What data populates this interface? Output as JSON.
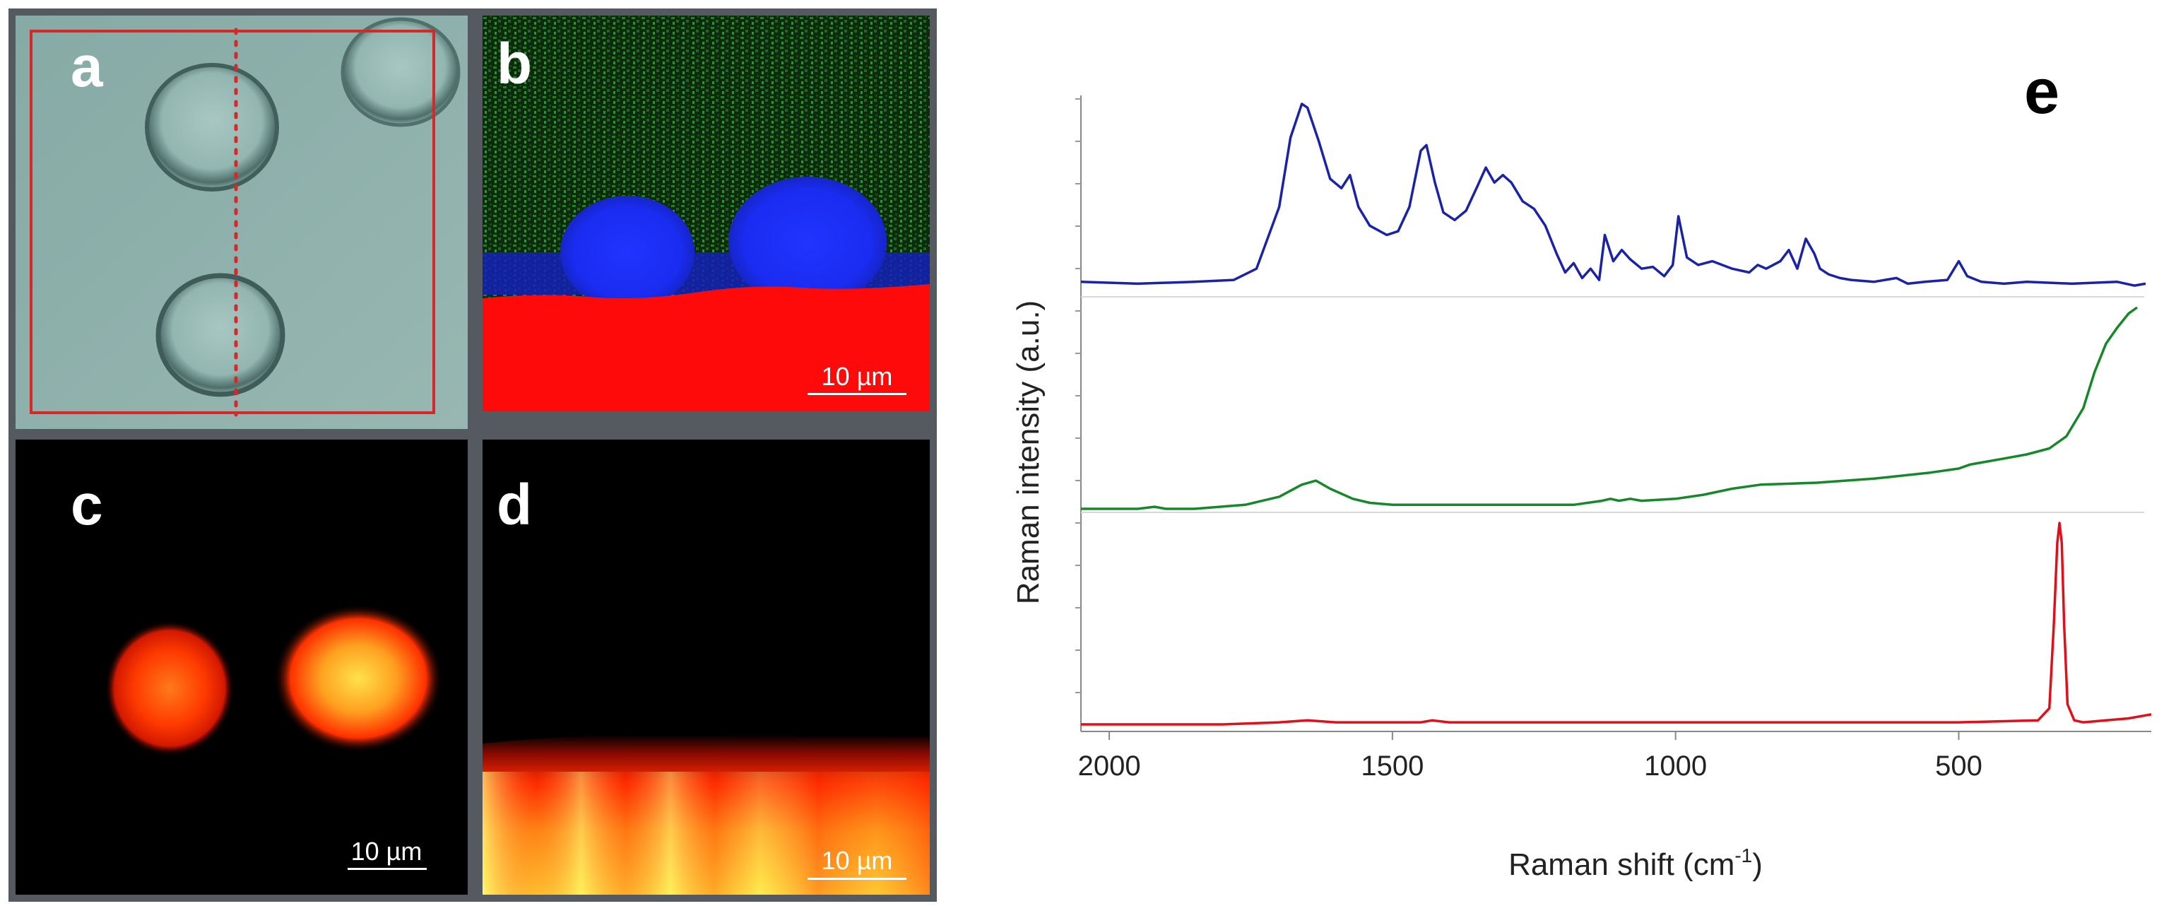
{
  "figure": {
    "panels": {
      "a": {
        "label": "a",
        "description_color": "#8fb0ac"
      },
      "b": {
        "label": "b",
        "scale_bar": "10 µm"
      },
      "c": {
        "label": "c",
        "scale_bar": "10 µm"
      },
      "d": {
        "label": "d",
        "scale_bar": "10 µm"
      },
      "e": {
        "label": "e"
      }
    },
    "colors": {
      "frame": "#555a60",
      "panel_a_bg": "#8fb0ac",
      "map_green": "#1e6b1e",
      "map_blue": "#1b2cff",
      "map_red": "#ff0a0a",
      "heat_black": "#000000",
      "heat_red": "#ff2200",
      "heat_yellow": "#ffe24a",
      "spectrum_blue": "#1a22a8",
      "spectrum_green": "#16882a",
      "spectrum_red": "#e0101a"
    }
  },
  "chart_data": {
    "type": "line",
    "panel": "e",
    "xlabel": "Raman shift (cm",
    "xlabel_superscript": "-1",
    "xlabel_close": ")",
    "ylabel": "Raman intensity (a.u.)",
    "x_reversed": true,
    "xlim": [
      2050,
      160
    ],
    "xticks": [
      2000,
      1500,
      1000,
      500
    ],
    "xtick_labels": [
      "2000",
      "1500",
      "1000",
      "500"
    ],
    "series": [
      {
        "name": "blue spectrum",
        "color": "#1a22a8",
        "x": [
          2050,
          1950,
          1850,
          1780,
          1740,
          1700,
          1680,
          1660,
          1650,
          1630,
          1610,
          1590,
          1575,
          1560,
          1540,
          1510,
          1490,
          1470,
          1450,
          1440,
          1425,
          1410,
          1390,
          1370,
          1350,
          1335,
          1320,
          1305,
          1290,
          1270,
          1250,
          1230,
          1210,
          1195,
          1180,
          1165,
          1150,
          1135,
          1125,
          1110,
          1095,
          1080,
          1060,
          1040,
          1020,
          1005,
          995,
          980,
          960,
          935,
          900,
          870,
          855,
          840,
          815,
          800,
          785,
          770,
          755,
          745,
          730,
          710,
          690,
          650,
          610,
          590,
          560,
          520,
          500,
          485,
          460,
          420,
          380,
          300,
          220,
          190,
          170
        ],
        "y": [
          0.05,
          0.04,
          0.05,
          0.06,
          0.12,
          0.45,
          0.82,
          1.0,
          0.98,
          0.8,
          0.6,
          0.55,
          0.62,
          0.45,
          0.35,
          0.3,
          0.32,
          0.45,
          0.75,
          0.78,
          0.58,
          0.42,
          0.38,
          0.43,
          0.56,
          0.66,
          0.58,
          0.62,
          0.58,
          0.48,
          0.44,
          0.35,
          0.2,
          0.1,
          0.15,
          0.07,
          0.12,
          0.06,
          0.3,
          0.16,
          0.22,
          0.17,
          0.12,
          0.13,
          0.08,
          0.14,
          0.4,
          0.18,
          0.14,
          0.16,
          0.12,
          0.1,
          0.14,
          0.12,
          0.16,
          0.22,
          0.12,
          0.28,
          0.2,
          0.12,
          0.09,
          0.07,
          0.06,
          0.05,
          0.07,
          0.04,
          0.05,
          0.06,
          0.16,
          0.08,
          0.05,
          0.04,
          0.05,
          0.04,
          0.05,
          0.03,
          0.04
        ]
      },
      {
        "name": "green spectrum",
        "color": "#16882a",
        "x": [
          2050,
          1950,
          1920,
          1900,
          1850,
          1760,
          1700,
          1660,
          1635,
          1610,
          1570,
          1540,
          1500,
          1400,
          1300,
          1180,
          1130,
          1115,
          1100,
          1080,
          1060,
          1000,
          950,
          900,
          850,
          750,
          650,
          550,
          500,
          480,
          460,
          420,
          380,
          340,
          310,
          280,
          260,
          240,
          220,
          200,
          185
        ],
        "y": [
          0.0,
          0.0,
          0.01,
          0.0,
          0.0,
          0.02,
          0.06,
          0.12,
          0.14,
          0.1,
          0.05,
          0.03,
          0.02,
          0.02,
          0.02,
          0.02,
          0.04,
          0.05,
          0.04,
          0.05,
          0.04,
          0.05,
          0.07,
          0.1,
          0.12,
          0.13,
          0.15,
          0.18,
          0.2,
          0.22,
          0.23,
          0.25,
          0.27,
          0.3,
          0.36,
          0.5,
          0.68,
          0.82,
          0.9,
          0.97,
          1.0
        ]
      },
      {
        "name": "red spectrum",
        "color": "#e0101a",
        "x": [
          2050,
          1800,
          1700,
          1650,
          1600,
          1450,
          1430,
          1400,
          1000,
          500,
          360,
          340,
          332,
          326,
          322,
          318,
          314,
          308,
          296,
          280,
          240,
          200,
          160
        ],
        "y": [
          0.0,
          0.0,
          0.01,
          0.02,
          0.01,
          0.01,
          0.02,
          0.01,
          0.01,
          0.01,
          0.02,
          0.08,
          0.5,
          0.9,
          1.0,
          0.9,
          0.5,
          0.1,
          0.02,
          0.01,
          0.02,
          0.03,
          0.05
        ]
      }
    ]
  }
}
